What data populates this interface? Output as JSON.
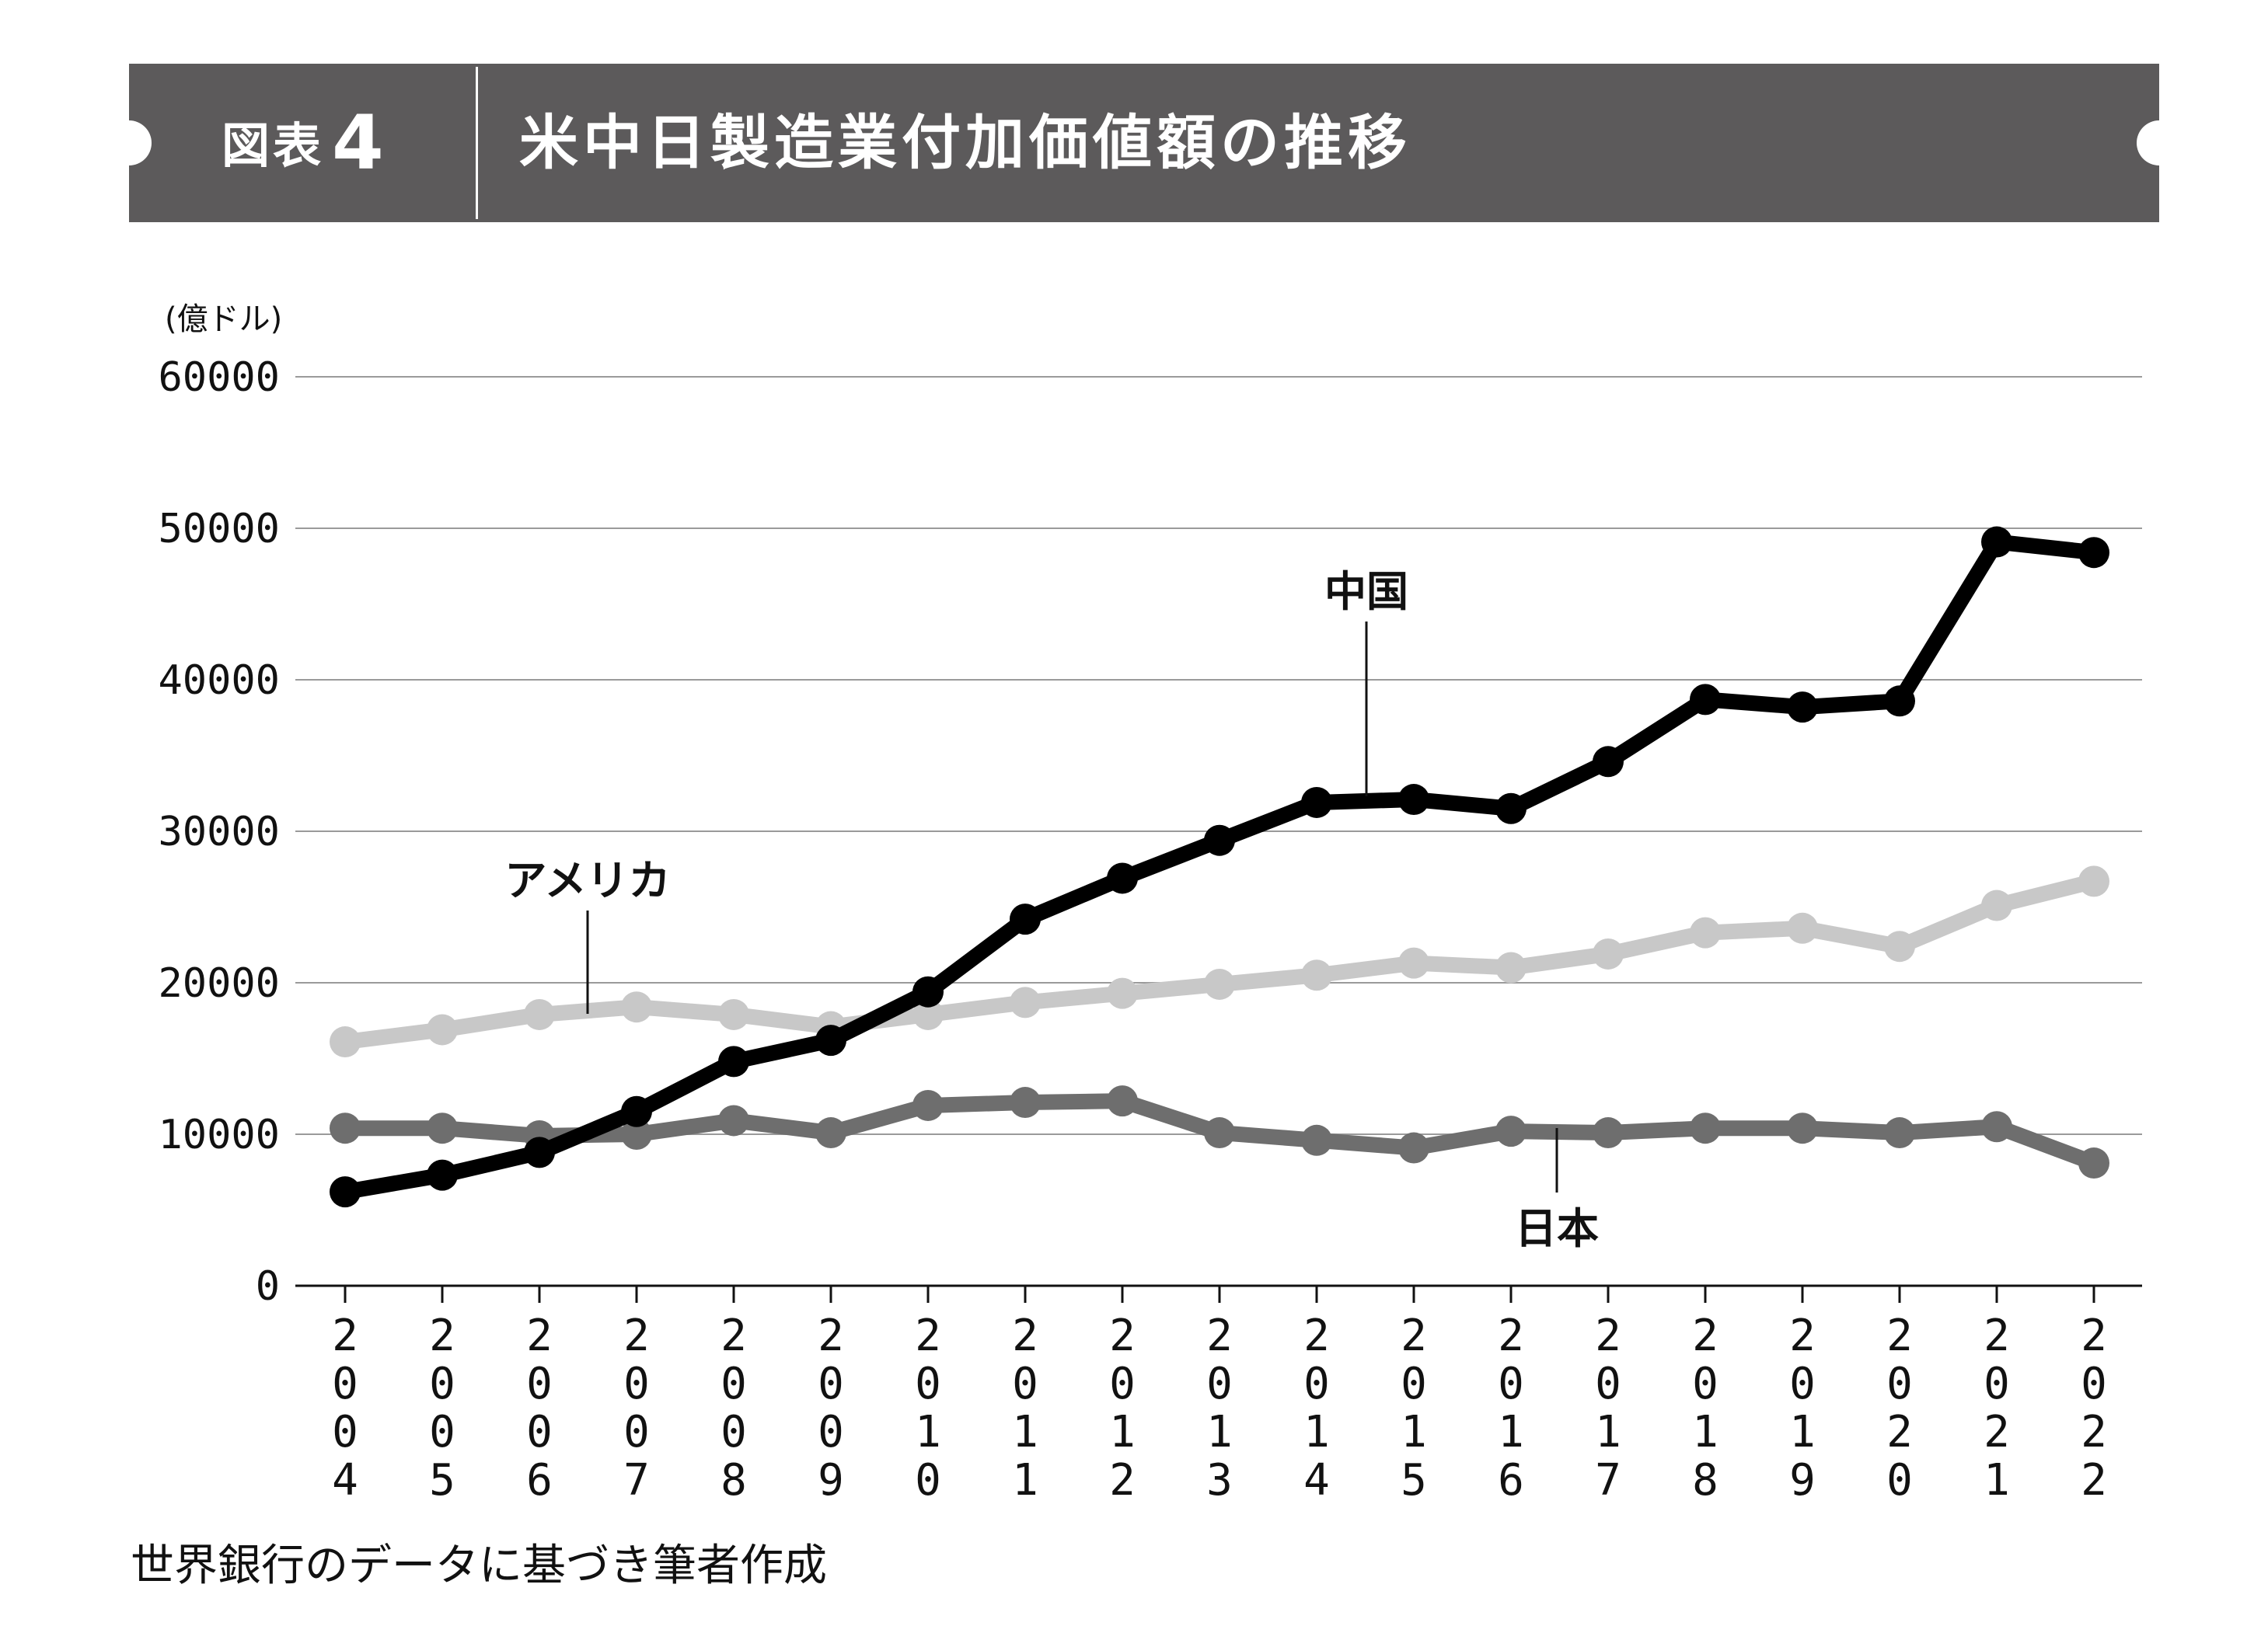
{
  "header": {
    "figure_label": "図表",
    "figure_number": "4",
    "title": "米中日製造業付加価値額の推移"
  },
  "colors": {
    "banner": "#5c5a5b",
    "china": "#000000",
    "usa": "#c8c8c8",
    "japan": "#6e6e6e",
    "grid": "#9a9a9a"
  },
  "source_note": "世界銀行のデータに基づき筆者作成",
  "chart_data": {
    "type": "line",
    "title": "米中日製造業付加価値額の推移",
    "ylabel": "(億ドル)",
    "xlabel": "",
    "ylim": [
      0,
      60000
    ],
    "yticks": [
      0,
      10000,
      20000,
      30000,
      40000,
      50000,
      60000
    ],
    "grid": true,
    "x": [
      "2004",
      "2005",
      "2006",
      "2007",
      "2008",
      "2009",
      "2010",
      "2011",
      "2012",
      "2013",
      "2014",
      "2015",
      "2016",
      "2017",
      "2018",
      "2019",
      "2020",
      "2021",
      "2022"
    ],
    "series": [
      {
        "name": "中国",
        "values": [
          6200,
          7300,
          8800,
          11500,
          14800,
          16200,
          19400,
          24200,
          26900,
          29400,
          31900,
          32100,
          31500,
          34600,
          38700,
          38200,
          38600,
          49100,
          48400
        ]
      },
      {
        "name": "アメリカ",
        "values": [
          16100,
          16900,
          17900,
          18400,
          17900,
          17100,
          17900,
          18700,
          19300,
          19900,
          20500,
          21300,
          21000,
          21900,
          23300,
          23600,
          22400,
          25100,
          26700
        ]
      },
      {
        "name": "日本",
        "values": [
          10400,
          10400,
          9900,
          10000,
          10900,
          10100,
          11900,
          12100,
          12200,
          10100,
          9600,
          9100,
          10200,
          10100,
          10400,
          10400,
          10100,
          10500,
          8100
        ]
      }
    ]
  }
}
